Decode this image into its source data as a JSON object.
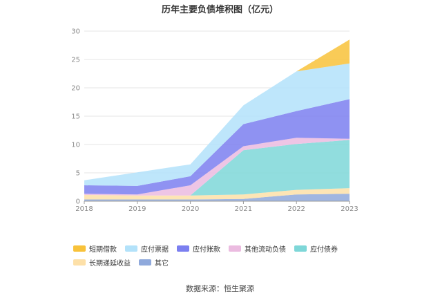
{
  "chart_data": {
    "type": "area",
    "title": "历年主要负债堆积图（亿元）",
    "x": [
      "2018",
      "2019",
      "2020",
      "2021",
      "2022",
      "2023"
    ],
    "ylim": [
      0,
      30
    ],
    "yticks": [
      0,
      5,
      10,
      15,
      20,
      25,
      30
    ],
    "grid": true,
    "legend_position": "bottom",
    "stack_order": [
      "其它",
      "长期递延收益",
      "应付债券",
      "其他流动负债",
      "应付账款",
      "应付票据",
      "短期借款"
    ],
    "series": [
      {
        "name": "短期借款",
        "color": "#f8c23a",
        "values": [
          0,
          0,
          0,
          0,
          0,
          4.2
        ]
      },
      {
        "name": "应付票据",
        "color": "#b3e2fa",
        "values": [
          0.9,
          2.4,
          2.1,
          3.3,
          7.0,
          6.3
        ]
      },
      {
        "name": "应付账款",
        "color": "#7b7ff0",
        "values": [
          1.5,
          1.5,
          1.6,
          3.9,
          4.7,
          7.0
        ]
      },
      {
        "name": "其他流动负债",
        "color": "#ebbbe0",
        "values": [
          0.2,
          0.2,
          1.8,
          0.7,
          1.1,
          0.2
        ]
      },
      {
        "name": "应付债券",
        "color": "#7ed7d8",
        "values": [
          0,
          0,
          0,
          7.8,
          8.1,
          8.5
        ]
      },
      {
        "name": "长期递延收益",
        "color": "#fde0a8",
        "values": [
          0.8,
          0.7,
          0.7,
          0.8,
          0.8,
          1.0
        ]
      },
      {
        "name": "其它",
        "color": "#8fa9dc",
        "values": [
          0.3,
          0.3,
          0.3,
          0.4,
          1.2,
          1.3
        ]
      }
    ]
  },
  "source_text": "数据来源：恒生聚源"
}
